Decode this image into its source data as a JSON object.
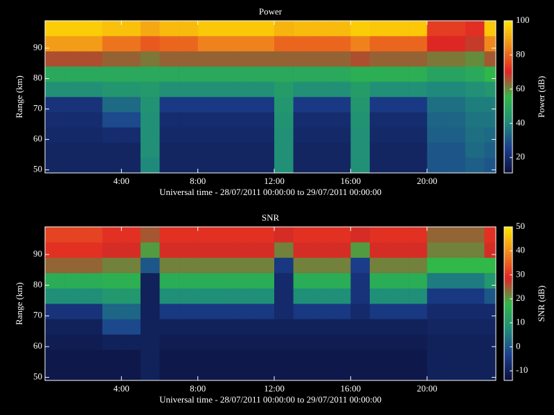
{
  "chart_data": [
    {
      "type": "heatmap",
      "title": "Power",
      "xlabel": "Universal time - 28/07/2011 00:00:00 to 29/07/2011 00:00:00",
      "ylabel": "Range (km)",
      "colorbar_label": "Power (dB)",
      "xlim": [
        0,
        23.6
      ],
      "ylim": [
        49,
        99
      ],
      "xticks": [
        {
          "value": 4,
          "label": "4:00"
        },
        {
          "value": 8,
          "label": "8:00"
        },
        {
          "value": 12,
          "label": "12:00"
        },
        {
          "value": 16,
          "label": "16:00"
        },
        {
          "value": 20,
          "label": "20:00"
        }
      ],
      "yticks": [
        50,
        60,
        70,
        80,
        90
      ],
      "clim": [
        11,
        100
      ],
      "cticks": [
        20,
        40,
        60,
        80,
        100
      ],
      "colorscale": [
        "#0b0f3a",
        "#1c3f8f",
        "#1f8c7a",
        "#30b848",
        "#e02424",
        "#f08a1c",
        "#ffe600"
      ],
      "x_edges": [
        0,
        1,
        2,
        3,
        4,
        5,
        6,
        7,
        8,
        9,
        10,
        11,
        12,
        13,
        14,
        15,
        16,
        17,
        18,
        19,
        20,
        21,
        22,
        23,
        23.6
      ],
      "y_edges": [
        49,
        54,
        59,
        64,
        69,
        74,
        79,
        84,
        89,
        94,
        99
      ],
      "values": [
        [
          18,
          18,
          19,
          20,
          22,
          42,
          50,
          66,
          88,
          96
        ],
        [
          18,
          18,
          19,
          20,
          22,
          42,
          50,
          66,
          88,
          96
        ],
        [
          18,
          18,
          19,
          20,
          22,
          42,
          50,
          66,
          88,
          96
        ],
        [
          18,
          18,
          20,
          28,
          34,
          44,
          50,
          64,
          82,
          94
        ],
        [
          18,
          18,
          20,
          28,
          34,
          44,
          50,
          64,
          82,
          94
        ],
        [
          40,
          42,
          42,
          42,
          43,
          45,
          50,
          62,
          78,
          90
        ],
        [
          18,
          18,
          19,
          20,
          24,
          42,
          50,
          64,
          80,
          93
        ],
        [
          18,
          18,
          19,
          20,
          24,
          42,
          50,
          64,
          80,
          93
        ],
        [
          18,
          18,
          19,
          20,
          24,
          42,
          50,
          64,
          84,
          95
        ],
        [
          18,
          18,
          19,
          20,
          24,
          42,
          50,
          64,
          84,
          95
        ],
        [
          18,
          18,
          19,
          20,
          24,
          42,
          50,
          64,
          84,
          95
        ],
        [
          18,
          18,
          19,
          20,
          24,
          42,
          50,
          64,
          84,
          95
        ],
        [
          42,
          42,
          42,
          43,
          44,
          46,
          50,
          64,
          80,
          92
        ],
        [
          18,
          18,
          19,
          20,
          24,
          42,
          50,
          64,
          80,
          93
        ],
        [
          18,
          18,
          19,
          20,
          24,
          42,
          50,
          64,
          80,
          93
        ],
        [
          18,
          18,
          19,
          20,
          24,
          42,
          50,
          64,
          80,
          93
        ],
        [
          42,
          42,
          42,
          43,
          44,
          46,
          52,
          66,
          84,
          96
        ],
        [
          18,
          18,
          19,
          20,
          24,
          42,
          52,
          64,
          80,
          95
        ],
        [
          18,
          18,
          19,
          20,
          24,
          42,
          52,
          64,
          80,
          95
        ],
        [
          18,
          18,
          19,
          20,
          24,
          42,
          52,
          64,
          80,
          95
        ],
        [
          30,
          30,
          32,
          33,
          35,
          40,
          48,
          62,
          70,
          74
        ],
        [
          30,
          30,
          32,
          33,
          35,
          40,
          48,
          62,
          70,
          74
        ],
        [
          32,
          34,
          35,
          36,
          38,
          42,
          50,
          60,
          68,
          72
        ],
        [
          30,
          32,
          34,
          36,
          38,
          44,
          55,
          65,
          85,
          95
        ]
      ]
    },
    {
      "type": "heatmap",
      "title": "SNR",
      "xlabel": "Universal time - 28/07/2011 00:00:00 to 29/07/2011 00:00:00",
      "ylabel": "Range (km)",
      "colorbar_label": "SNR (dB)",
      "xlim": [
        0,
        23.6
      ],
      "ylim": [
        49,
        99
      ],
      "xticks": [
        {
          "value": 4,
          "label": "4:00"
        },
        {
          "value": 8,
          "label": "8:00"
        },
        {
          "value": 12,
          "label": "12:00"
        },
        {
          "value": 16,
          "label": "16:00"
        },
        {
          "value": 20,
          "label": "20:00"
        }
      ],
      "yticks": [
        50,
        60,
        70,
        80,
        90
      ],
      "clim": [
        -14,
        50
      ],
      "cticks": [
        -10,
        0,
        10,
        20,
        30,
        40,
        50
      ],
      "colorscale": [
        "#0b0f3a",
        "#1c3f8f",
        "#1f8c7a",
        "#30b848",
        "#e02424",
        "#f08a1c",
        "#ffe600"
      ],
      "x_edges": [
        0,
        1,
        2,
        3,
        4,
        5,
        6,
        7,
        8,
        9,
        10,
        11,
        12,
        13,
        14,
        15,
        16,
        17,
        18,
        19,
        20,
        21,
        22,
        23,
        23.6
      ],
      "y_edges": [
        49,
        54,
        59,
        64,
        69,
        74,
        79,
        84,
        89,
        94,
        99
      ],
      "values": [
        [
          -12,
          -12,
          -11,
          -10,
          -6,
          8,
          15,
          24,
          30,
          32
        ],
        [
          -12,
          -12,
          -11,
          -10,
          -6,
          8,
          15,
          24,
          30,
          32
        ],
        [
          -12,
          -12,
          -11,
          -10,
          -6,
          8,
          15,
          24,
          30,
          32
        ],
        [
          -12,
          -12,
          -10,
          -2,
          2,
          10,
          16,
          22,
          28,
          30
        ],
        [
          -12,
          -12,
          -10,
          -2,
          2,
          10,
          16,
          22,
          28,
          30
        ],
        [
          -10,
          -10,
          -10,
          -10,
          -10,
          -10,
          -10,
          0,
          20,
          25
        ],
        [
          -12,
          -12,
          -11,
          -10,
          -5,
          8,
          15,
          22,
          28,
          30
        ],
        [
          -12,
          -12,
          -11,
          -10,
          -5,
          8,
          15,
          22,
          28,
          30
        ],
        [
          -12,
          -12,
          -11,
          -10,
          -5,
          8,
          15,
          22,
          28,
          30
        ],
        [
          -12,
          -12,
          -11,
          -10,
          -5,
          8,
          15,
          22,
          28,
          30
        ],
        [
          -12,
          -12,
          -11,
          -10,
          -5,
          8,
          15,
          22,
          28,
          30
        ],
        [
          -12,
          -12,
          -11,
          -10,
          -5,
          8,
          15,
          22,
          28,
          30
        ],
        [
          -12,
          -12,
          -11,
          -10,
          -8,
          -8,
          -8,
          -5,
          22,
          28
        ],
        [
          -12,
          -12,
          -11,
          -10,
          -5,
          8,
          15,
          22,
          28,
          30
        ],
        [
          -12,
          -12,
          -11,
          -10,
          -5,
          8,
          15,
          22,
          28,
          30
        ],
        [
          -12,
          -12,
          -11,
          -10,
          -5,
          8,
          15,
          22,
          28,
          30
        ],
        [
          -12,
          -12,
          -11,
          -10,
          -8,
          -6,
          -6,
          -4,
          20,
          28
        ],
        [
          -12,
          -12,
          -11,
          -10,
          -5,
          8,
          15,
          22,
          28,
          30
        ],
        [
          -12,
          -12,
          -11,
          -10,
          -5,
          8,
          15,
          22,
          28,
          30
        ],
        [
          -12,
          -12,
          -11,
          -10,
          -5,
          8,
          15,
          22,
          28,
          30
        ],
        [
          -10,
          -10,
          -10,
          -9,
          -8,
          -5,
          5,
          18,
          22,
          24
        ],
        [
          -10,
          -10,
          -10,
          -9,
          -8,
          -5,
          5,
          18,
          22,
          24
        ],
        [
          -10,
          -10,
          -10,
          -9,
          -8,
          -5,
          5,
          18,
          22,
          24
        ],
        [
          -10,
          -10,
          -10,
          -9,
          -8,
          0,
          10,
          18,
          28,
          30
        ]
      ]
    }
  ]
}
